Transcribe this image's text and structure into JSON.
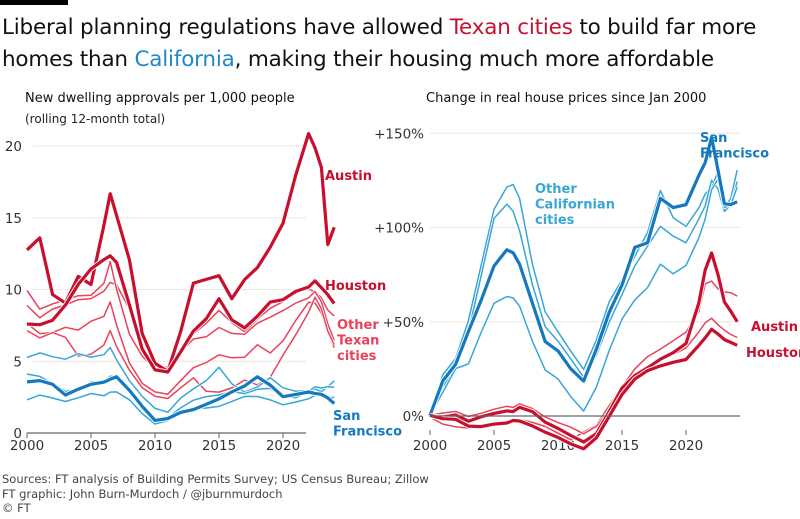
{
  "headline": {
    "part1": "Liberal planning regulations have allowed ",
    "texan": "Texan cities",
    "part2": " to build far more homes than ",
    "california": "California",
    "part3": ", making their housing much more affordable"
  },
  "colors": {
    "texas_dark": "#c8102e",
    "texas_light": "#e8435a",
    "california_dark": "#1479bf",
    "california_light": "#38a6d6",
    "gridline": "#ebe6df",
    "axis": "#666666"
  },
  "footer": {
    "sources": "Sources: FT analysis of Building Permits Survey; US Census Bureau; Zillow",
    "credit": "FT graphic: John Burn-Murdoch / @jburnmurdoch",
    "copyright": "© FT"
  },
  "chart_data": [
    {
      "type": "line",
      "title": "New dwelling approvals per 1,000 people",
      "subtitle": "(rolling 12-month total)",
      "xlabel": "",
      "ylabel": "",
      "xlim": [
        2000,
        2024
      ],
      "ylim": [
        0,
        20
      ],
      "xticks": [
        2000,
        2005,
        2010,
        2015,
        2020
      ],
      "xtick_labels": [
        "2000",
        "2005",
        "2010",
        "2015",
        "2020"
      ],
      "yticks": [
        0,
        5,
        10,
        15,
        20
      ],
      "ytick_labels": [
        "0",
        "5",
        "10",
        "15",
        "20"
      ],
      "grid": true,
      "legend": "direct-labels",
      "labels": [
        {
          "text": "Austin",
          "series": "Austin"
        },
        {
          "text": "Houston",
          "series": "Houston"
        },
        {
          "text": "Other Texan cities",
          "lines": [
            "Other",
            "Texan",
            "cities"
          ],
          "series": "Other Texan cities"
        },
        {
          "text": "San Francisco",
          "lines": [
            "San",
            "Francisco"
          ],
          "series": "San Francisco"
        }
      ],
      "x": [
        2000,
        2001,
        2002,
        2003,
        2004,
        2005,
        2006,
        2006.5,
        2007,
        2008,
        2009,
        2010,
        2011,
        2012,
        2013,
        2014,
        2015,
        2016,
        2017,
        2018,
        2019,
        2020,
        2021,
        2022,
        2022.5,
        2023,
        2023.5,
        2024
      ],
      "series": [
        {
          "name": "Austin",
          "group": "texas",
          "weight": "bold",
          "values": [
            12.8,
            13.5,
            9.5,
            9.0,
            11.0,
            10.5,
            14.5,
            16.6,
            15.0,
            12.0,
            7.0,
            5.0,
            4.4,
            7.0,
            10.3,
            10.6,
            11.0,
            9.5,
            10.8,
            11.5,
            12.8,
            14.5,
            18.0,
            21.0,
            20.0,
            18.5,
            13.0,
            14.2
          ]
        },
        {
          "name": "Houston",
          "group": "texas",
          "weight": "bold",
          "values": [
            7.5,
            7.4,
            7.8,
            9.0,
            10.5,
            11.5,
            12.0,
            12.2,
            11.8,
            9.0,
            6.0,
            4.5,
            4.2,
            5.5,
            7.0,
            8.0,
            9.5,
            8.0,
            7.3,
            8.0,
            9.0,
            9.3,
            10.0,
            10.3,
            10.6,
            10.0,
            9.5,
            9.0
          ]
        },
        {
          "name": "Other Texan cities",
          "group": "texas",
          "weight": "light",
          "values": [
            9.0,
            8.0,
            8.5,
            8.8,
            9.3,
            9.5,
            10.0,
            10.5,
            10.2,
            8.5,
            6.0,
            4.6,
            4.4,
            5.8,
            6.8,
            7.5,
            8.5,
            7.8,
            7.2,
            8.0,
            8.6,
            9.0,
            9.8,
            10.1,
            10.0,
            9.5,
            8.5,
            8.0
          ]
        },
        {
          "name": "Other Texan cities 2",
          "group": "texas",
          "weight": "light",
          "values": [
            9.8,
            8.5,
            9.0,
            9.4,
            9.7,
            9.6,
            10.3,
            11.8,
            10.0,
            7.0,
            5.5,
            4.5,
            4.5,
            5.5,
            6.5,
            6.8,
            7.5,
            7.0,
            6.8,
            7.5,
            8.0,
            8.6,
            9.2,
            9.5,
            9.8,
            9.0,
            7.5,
            6.5
          ]
        },
        {
          "name": "Other Texan cities 3",
          "group": "texas",
          "weight": "light",
          "values": [
            7.5,
            6.8,
            7.0,
            7.5,
            7.3,
            7.8,
            8.0,
            9.0,
            7.5,
            5.0,
            3.6,
            2.9,
            2.6,
            3.5,
            4.5,
            5.0,
            5.6,
            5.3,
            5.2,
            6.0,
            5.5,
            6.5,
            8.0,
            9.2,
            9.0,
            8.2,
            7.0,
            6.0
          ]
        },
        {
          "name": "Other Texan cities 4",
          "group": "texas",
          "weight": "light",
          "values": [
            7.0,
            6.5,
            7.0,
            6.8,
            5.5,
            5.5,
            6.0,
            7.0,
            6.0,
            4.5,
            3.3,
            2.6,
            2.3,
            3.0,
            3.8,
            3.0,
            3.0,
            3.2,
            3.6,
            3.2,
            3.8,
            5.5,
            7.0,
            8.5,
            9.4,
            8.5,
            7.0,
            6.2
          ]
        },
        {
          "name": "San Francisco",
          "group": "california",
          "weight": "bold",
          "values": [
            3.5,
            3.5,
            3.3,
            2.7,
            3.2,
            3.5,
            3.5,
            3.6,
            3.8,
            3.0,
            2.0,
            1.0,
            1.0,
            1.3,
            1.5,
            2.0,
            2.5,
            3.0,
            3.3,
            3.8,
            3.2,
            2.5,
            2.8,
            3.0,
            2.8,
            2.6,
            2.3,
            2.0
          ]
        },
        {
          "name": "Other Californian cities",
          "group": "california",
          "weight": "light",
          "values": [
            5.4,
            5.6,
            5.2,
            5.0,
            5.5,
            5.4,
            5.6,
            6.0,
            5.0,
            3.5,
            2.5,
            1.8,
            1.6,
            2.5,
            3.0,
            3.5,
            4.5,
            3.5,
            3.0,
            3.3,
            3.8,
            3.0,
            2.8,
            3.0,
            3.2,
            3.0,
            3.2,
            3.5
          ]
        },
        {
          "name": "Other Californian cities 2",
          "group": "california",
          "weight": "light",
          "values": [
            4.0,
            3.8,
            3.4,
            3.0,
            3.2,
            3.6,
            3.5,
            3.8,
            3.9,
            2.9,
            1.8,
            0.9,
            1.0,
            1.6,
            2.2,
            2.6,
            2.8,
            3.0,
            2.7,
            2.9,
            3.0,
            2.6,
            2.6,
            3.0,
            3.2,
            3.0,
            3.1,
            3.2
          ]
        },
        {
          "name": "Other Californian cities 3",
          "group": "california",
          "weight": "light",
          "values": [
            2.2,
            2.5,
            2.4,
            2.3,
            2.6,
            2.8,
            2.5,
            2.7,
            2.8,
            2.4,
            1.5,
            0.7,
            0.8,
            1.2,
            1.6,
            1.8,
            2.0,
            2.3,
            2.5,
            2.4,
            2.2,
            2.0,
            2.3,
            2.5,
            2.6,
            2.5,
            2.3,
            2.5
          ]
        }
      ]
    },
    {
      "type": "line",
      "title": "Change in real house prices since Jan 2000",
      "xlabel": "",
      "ylabel": "",
      "xlim": [
        2000,
        2024
      ],
      "ylim": [
        -15,
        150
      ],
      "xticks": [
        2000,
        2005,
        2010,
        2015,
        2020
      ],
      "xtick_labels": [
        "2000",
        "2005",
        "2010",
        "2015",
        "2020"
      ],
      "yticks": [
        0,
        50,
        100,
        150
      ],
      "ytick_labels": [
        "0%",
        "+50%",
        "+100%",
        "+150%"
      ],
      "grid": true,
      "legend": "direct-labels",
      "labels": [
        {
          "text": "San Francisco",
          "lines": [
            "San",
            "Francisco"
          ],
          "series": "San Francisco"
        },
        {
          "text": "Other Californian cities",
          "lines": [
            "Other",
            "Californian",
            "cities"
          ],
          "series": "Other Californian cities"
        },
        {
          "text": "Austin",
          "series": "Austin"
        },
        {
          "text": "Houston",
          "series": "Houston"
        }
      ],
      "x": [
        2000,
        2001,
        2002,
        2003,
        2004,
        2005,
        2006,
        2006.5,
        2007,
        2008,
        2009,
        2010,
        2011,
        2012,
        2013,
        2014,
        2015,
        2016,
        2017,
        2018,
        2019,
        2020,
        2021,
        2021.5,
        2022,
        2022.5,
        2023,
        2023.5,
        2024
      ],
      "series": [
        {
          "name": "San Francisco",
          "group": "california",
          "weight": "bold",
          "values": [
            0,
            18,
            27,
            45,
            62,
            80,
            88,
            86,
            80,
            60,
            40,
            35,
            25,
            18,
            35,
            55,
            70,
            90,
            92,
            115,
            110,
            112,
            128,
            135,
            148,
            130,
            112,
            112,
            114
          ]
        },
        {
          "name": "Other Californian cities",
          "group": "california",
          "weight": "light",
          "values": [
            0,
            22,
            30,
            50,
            80,
            110,
            122,
            123,
            115,
            80,
            55,
            45,
            35,
            25,
            40,
            60,
            72,
            85,
            98,
            120,
            105,
            100,
            110,
            118,
            122,
            130,
            110,
            115,
            130
          ]
        },
        {
          "name": "Other Californian cities 2",
          "group": "california",
          "weight": "light",
          "values": [
            0,
            15,
            25,
            45,
            75,
            105,
            112,
            108,
            98,
            70,
            48,
            40,
            30,
            20,
            32,
            50,
            65,
            80,
            90,
            100,
            95,
            92,
            105,
            112,
            125,
            120,
            108,
            112,
            125
          ]
        },
        {
          "name": "Other Californian cities 3",
          "group": "california",
          "weight": "light",
          "values": [
            0,
            12,
            25,
            28,
            45,
            60,
            63,
            62,
            58,
            40,
            25,
            20,
            10,
            2,
            15,
            35,
            52,
            62,
            68,
            80,
            75,
            80,
            95,
            105,
            120,
            125,
            110,
            112,
            122
          ]
        },
        {
          "name": "Austin",
          "group": "texas",
          "weight": "bold",
          "values": [
            0,
            -1,
            0,
            -3,
            0,
            2,
            3,
            2,
            4,
            2,
            -3,
            -6,
            -10,
            -14,
            -10,
            2,
            15,
            22,
            26,
            30,
            33,
            38,
            60,
            78,
            87,
            75,
            60,
            55,
            50
          ]
        },
        {
          "name": "Houston",
          "group": "texas",
          "weight": "bold",
          "values": [
            0,
            -2,
            -2,
            -5,
            -5,
            -4,
            -4,
            -3,
            -3,
            -5,
            -8,
            -11,
            -15,
            -18,
            -12,
            0,
            12,
            20,
            24,
            26,
            28,
            30,
            38,
            42,
            46,
            43,
            40,
            39,
            38
          ]
        },
        {
          "name": "Texas other",
          "group": "texas",
          "weight": "light",
          "values": [
            0,
            -4,
            -6,
            -7,
            -5,
            -4,
            -3,
            -2,
            -2,
            -4,
            -6,
            -9,
            -12,
            -8,
            -5,
            5,
            15,
            25,
            32,
            36,
            40,
            44,
            55,
            70,
            72,
            68,
            66,
            65,
            63
          ]
        },
        {
          "name": "Texas other 2",
          "group": "texas",
          "weight": "light",
          "values": [
            0,
            1,
            2,
            0,
            2,
            4,
            5,
            4,
            6,
            4,
            0,
            -3,
            -6,
            -10,
            -6,
            3,
            15,
            22,
            26,
            29,
            32,
            36,
            45,
            50,
            52,
            48,
            45,
            43,
            42
          ]
        }
      ]
    }
  ]
}
